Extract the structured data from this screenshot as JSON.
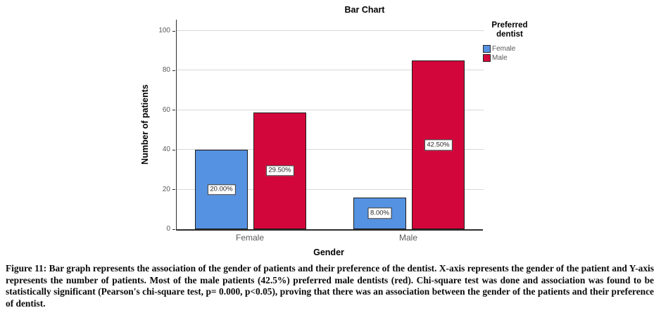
{
  "figure": {
    "caption": "Figure 11: Bar graph represents the association of the gender of patients and their preference of the dentist. X-axis represents the gender of the patient and Y-axis represents the number of patients. Most of the male patients (42.5%) preferred male dentists (red). Chi-square test was done and association was found to be statistically significant (Pearson's chi-square test, p= 0.000, p<0.05), proving that there was an association between the gender of the patients and their preference of dentist."
  },
  "chart_data": {
    "type": "bar",
    "title": "Bar Chart",
    "xlabel": "Gender",
    "ylabel": "Number of patients",
    "categories": [
      "Female",
      "Male"
    ],
    "series": [
      {
        "name": "Female",
        "color": "#5592E1",
        "values": [
          40,
          16
        ],
        "percent_labels": [
          "20.00%",
          "8.00%"
        ]
      },
      {
        "name": "Male",
        "color": "#D2063A",
        "values": [
          59,
          85
        ],
        "percent_labels": [
          "29.50%",
          "42.50%"
        ]
      }
    ],
    "ylim": [
      0,
      105
    ],
    "yticks": [
      0,
      20,
      40,
      60,
      80,
      100
    ],
    "grid": true,
    "legend": {
      "title": "Preferred dentist",
      "position": "top-right"
    },
    "colors": {
      "grid": "#d8d8d8",
      "axis": "#2e2e2e",
      "tick_text": "#595959"
    }
  }
}
